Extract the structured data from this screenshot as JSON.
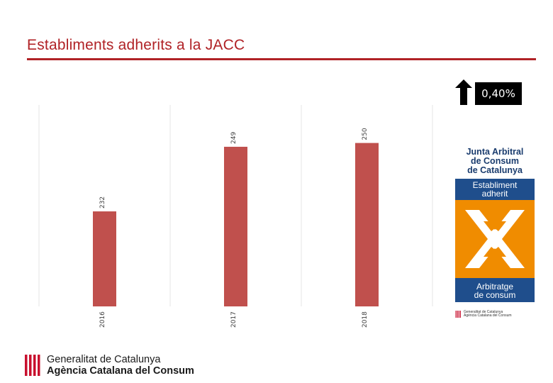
{
  "page": {
    "title": "Establiments adherits a la JACC"
  },
  "chart_data": {
    "type": "bar",
    "categories": [
      "2016",
      "2017",
      "2018"
    ],
    "values": [
      232,
      249,
      250
    ],
    "value_labels": [
      "232",
      "249",
      "250"
    ],
    "ylim": [
      207,
      260
    ],
    "grid": "vertical",
    "bar_color": "#c0504d",
    "grid_color": "#e6e6e6"
  },
  "change": {
    "label": "0,40%",
    "direction": "up"
  },
  "jacc_logo": {
    "line1": "Junta Arbitral",
    "line2": "de Consum",
    "line3": "de Catalunya",
    "band1_line1": "Establiment",
    "band1_line2": "adherit",
    "band2_line1": "Arbitratge",
    "band2_line2": "de consum",
    "foot_line1": "Generalitat de Catalunya",
    "foot_line2": "Agència Catalana del Consum",
    "colors": {
      "blue": "#1f4e8c",
      "orange": "#f08c00"
    }
  },
  "footer": {
    "line1": "Generalitat de Catalunya",
    "line2": "Agència Catalana del Consum",
    "flag_colors": {
      "red": "#c8102e",
      "bg": "#ffffff"
    }
  }
}
